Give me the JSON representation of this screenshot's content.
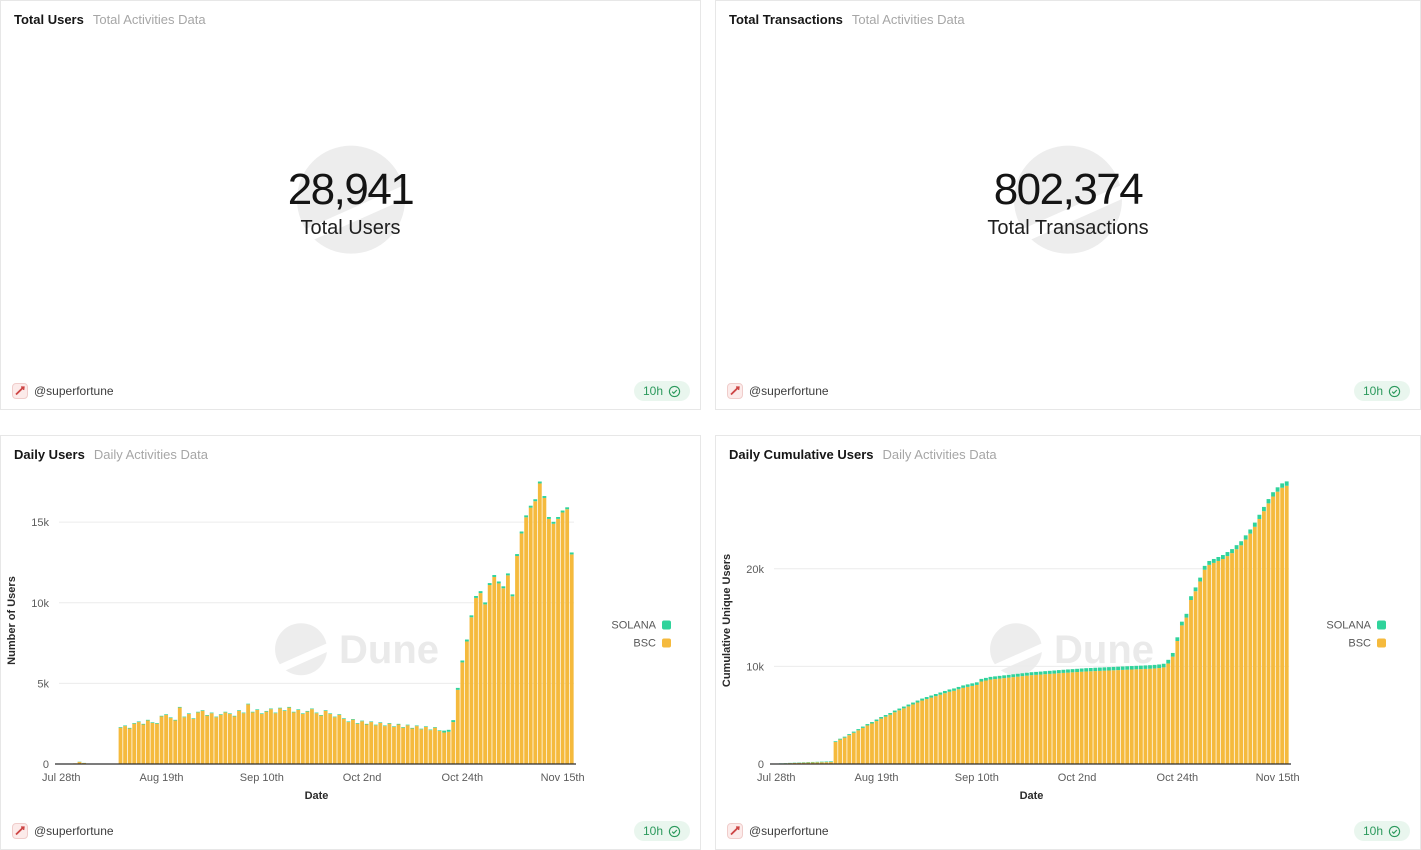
{
  "watermark": {
    "text": "Dune"
  },
  "colors": {
    "bsc": "#f5ba3d",
    "solana": "#30d39b",
    "grid": "#ececec",
    "axis_line": "#2e2e2e",
    "tick_text": "#5c5c5c",
    "badge_green": "#2c9a5d",
    "watermark_gray": "#ededed"
  },
  "panels": [
    {
      "title": "Total Users",
      "subtitle": "Total Activities Data",
      "counter": {
        "value": "28,941",
        "label": "Total Users"
      },
      "footer": {
        "author": "@superfortune",
        "badge": "10h"
      }
    },
    {
      "title": "Total Transactions",
      "subtitle": "Total Activities Data",
      "counter": {
        "value": "802,374",
        "label": "Total Transactions"
      },
      "footer": {
        "author": "@superfortune",
        "badge": "10h"
      }
    },
    {
      "title": "Daily Users",
      "subtitle": "Daily Activities Data",
      "footer": {
        "author": "@superfortune",
        "badge": "10h"
      }
    },
    {
      "title": "Daily Cumulative Users",
      "subtitle": "Daily Activities Data",
      "footer": {
        "author": "@superfortune",
        "badge": "10h"
      }
    }
  ],
  "chart_data": [
    {
      "type": "bar",
      "stacked": true,
      "title": "Daily Users",
      "xlabel": "Date",
      "ylabel": "Number of Users",
      "grid": true,
      "legend_position": "right",
      "legend_order": [
        "SOLANA",
        "BSC"
      ],
      "x_tick_indices": [
        0,
        22,
        44,
        66,
        88,
        110
      ],
      "x_tick_labels": [
        "Jul 28th",
        "Aug 19th",
        "Sep 10th",
        "Oct 2nd",
        "Oct 24th",
        "Nov 15th"
      ],
      "y_ticks": [
        0,
        5000,
        10000,
        15000
      ],
      "y_tick_labels": [
        "0",
        "5k",
        "10k",
        "15k"
      ],
      "ylim": [
        0,
        17800
      ],
      "series": [
        {
          "name": "BSC",
          "color": "#f5ba3d",
          "values": [
            0,
            0,
            0,
            40,
            130,
            60,
            20,
            0,
            0,
            0,
            0,
            0,
            0,
            2250,
            2350,
            2200,
            2500,
            2600,
            2450,
            2700,
            2550,
            2500,
            2950,
            3050,
            2850,
            2700,
            3500,
            2900,
            3100,
            2800,
            3200,
            3300,
            3000,
            3150,
            2900,
            3050,
            3200,
            3100,
            2950,
            3300,
            3150,
            3700,
            3200,
            3350,
            3100,
            3250,
            3400,
            3150,
            3450,
            3300,
            3500,
            3200,
            3350,
            3100,
            3250,
            3400,
            3150,
            3000,
            3300,
            3100,
            2900,
            3050,
            2800,
            2600,
            2750,
            2500,
            2650,
            2450,
            2600,
            2400,
            2550,
            2350,
            2500,
            2300,
            2450,
            2250,
            2400,
            2200,
            2350,
            2150,
            2300,
            2100,
            2250,
            2050,
            1950,
            2000,
            2600,
            4600,
            6300,
            7600,
            9100,
            10300,
            10600,
            9900,
            11100,
            11600,
            11200,
            10900,
            11700,
            10400,
            12900,
            14300,
            15300,
            15900,
            16300,
            17400,
            16500,
            15200,
            14900,
            15200,
            15600,
            15800,
            13000
          ]
        },
        {
          "name": "SOLANA",
          "color": "#30d39b",
          "values": [
            0,
            0,
            0,
            5,
            15,
            8,
            3,
            0,
            0,
            0,
            0,
            0,
            0,
            40,
            40,
            40,
            40,
            40,
            40,
            40,
            40,
            40,
            40,
            40,
            40,
            40,
            40,
            40,
            40,
            40,
            40,
            40,
            40,
            40,
            40,
            40,
            40,
            40,
            40,
            40,
            40,
            40,
            40,
            40,
            40,
            40,
            40,
            40,
            40,
            40,
            40,
            40,
            40,
            40,
            40,
            40,
            40,
            40,
            40,
            40,
            40,
            40,
            40,
            40,
            40,
            40,
            40,
            40,
            40,
            40,
            40,
            40,
            40,
            40,
            40,
            40,
            40,
            40,
            40,
            40,
            40,
            40,
            40,
            40,
            120,
            120,
            120,
            120,
            120,
            120,
            120,
            120,
            120,
            120,
            120,
            120,
            120,
            120,
            120,
            120,
            120,
            120,
            120,
            120,
            120,
            120,
            120,
            120,
            120,
            120,
            120,
            120,
            120
          ]
        }
      ]
    },
    {
      "type": "bar",
      "stacked": true,
      "title": "Daily Cumulative Users",
      "xlabel": "Date",
      "ylabel": "Cumulative Unique Users",
      "grid": true,
      "legend_position": "right",
      "legend_order": [
        "SOLANA",
        "BSC"
      ],
      "x_tick_indices": [
        0,
        22,
        44,
        66,
        88,
        110
      ],
      "x_tick_labels": [
        "Jul 28th",
        "Aug 19th",
        "Sep 10th",
        "Oct 2nd",
        "Oct 24th",
        "Nov 15th"
      ],
      "y_ticks": [
        0,
        10000,
        20000
      ],
      "y_tick_labels": [
        "0",
        "10k",
        "20k"
      ],
      "ylim": [
        0,
        29400
      ],
      "series": [
        {
          "name": "BSC",
          "color": "#f5ba3d",
          "values": [
            30,
            50,
            70,
            90,
            110,
            125,
            140,
            150,
            160,
            170,
            180,
            190,
            200,
            2250,
            2500,
            2700,
            2950,
            3200,
            3450,
            3700,
            3950,
            4150,
            4400,
            4650,
            4850,
            5050,
            5300,
            5500,
            5700,
            5900,
            6100,
            6300,
            6500,
            6650,
            6800,
            6950,
            7100,
            7250,
            7400,
            7500,
            7650,
            7800,
            7900,
            8000,
            8100,
            8450,
            8550,
            8650,
            8700,
            8750,
            8800,
            8850,
            8900,
            8950,
            9000,
            9050,
            9100,
            9130,
            9160,
            9200,
            9230,
            9260,
            9300,
            9330,
            9360,
            9390,
            9420,
            9450,
            9480,
            9500,
            9520,
            9540,
            9560,
            9580,
            9600,
            9620,
            9640,
            9660,
            9680,
            9700,
            9720,
            9740,
            9760,
            9790,
            9830,
            9900,
            10300,
            11000,
            12600,
            14200,
            15000,
            16800,
            17700,
            18700,
            19900,
            20400,
            20600,
            20800,
            21000,
            21300,
            21600,
            22000,
            22400,
            23000,
            23600,
            24300,
            25100,
            25900,
            26700,
            27400,
            27900,
            28300,
            28500
          ]
        },
        {
          "name": "SOLANA",
          "color": "#30d39b",
          "values": [
            10,
            15,
            20,
            25,
            30,
            35,
            40,
            45,
            50,
            55,
            60,
            65,
            70,
            80,
            90,
            100,
            110,
            118,
            125,
            132,
            140,
            147,
            155,
            160,
            165,
            170,
            175,
            180,
            185,
            190,
            195,
            200,
            205,
            210,
            215,
            220,
            225,
            230,
            235,
            240,
            245,
            250,
            255,
            260,
            265,
            268,
            271,
            274,
            277,
            280,
            283,
            286,
            289,
            292,
            295,
            298,
            301,
            304,
            307,
            310,
            313,
            316,
            319,
            322,
            325,
            328,
            330,
            332,
            334,
            336,
            338,
            340,
            342,
            344,
            346,
            348,
            350,
            352,
            354,
            356,
            358,
            360,
            362,
            364,
            366,
            369,
            372,
            375,
            378,
            381,
            384,
            387,
            390,
            393,
            396,
            399,
            402,
            405,
            408,
            411,
            414,
            417,
            420,
            423,
            426,
            429,
            432,
            435,
            438,
            441,
            444,
            447,
            450
          ]
        }
      ]
    }
  ]
}
